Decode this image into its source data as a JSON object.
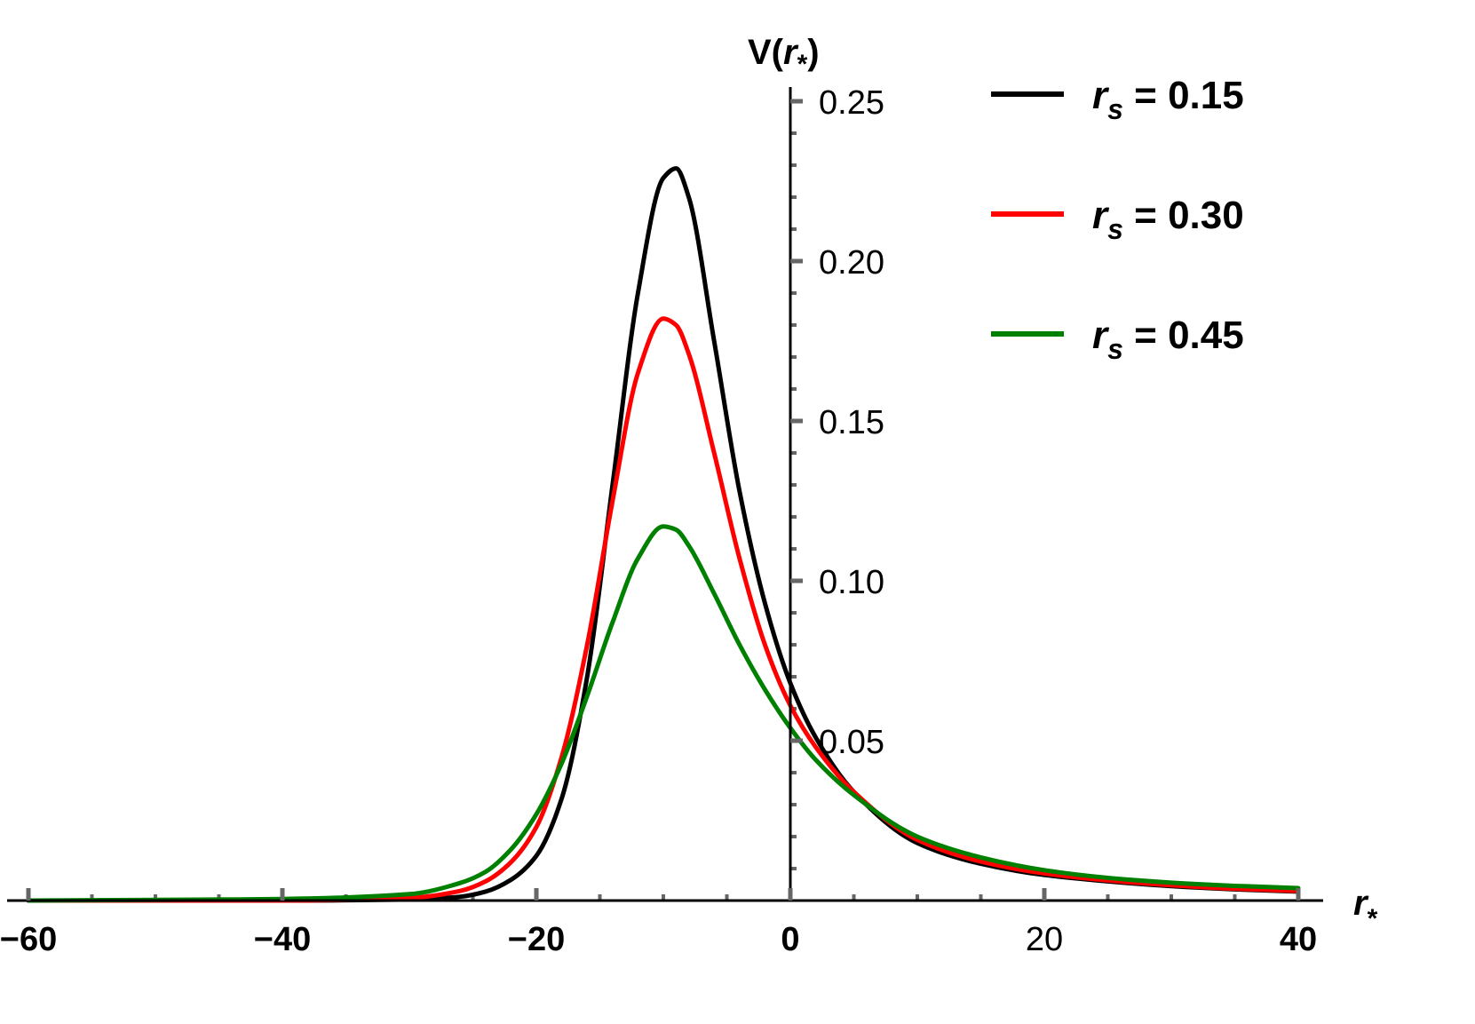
{
  "chart_data": {
    "type": "line",
    "xlabel": {
      "base": "r",
      "sub": "*"
    },
    "ylabel": {
      "prefix": "V(",
      "base": "r",
      "sub": "*",
      "suffix": ")"
    },
    "xlim": [
      -60,
      40
    ],
    "ylim": [
      0,
      0.26
    ],
    "x_ticks": [
      {
        "value": -60,
        "label": "−60",
        "bold": true
      },
      {
        "value": -40,
        "label": "−40",
        "bold": true
      },
      {
        "value": -20,
        "label": "−20",
        "bold": true
      },
      {
        "value": 0,
        "label": "0",
        "bold": true
      },
      {
        "value": 20,
        "label": "20",
        "bold": false
      },
      {
        "value": 40,
        "label": "40",
        "bold": true
      }
    ],
    "y_ticks": [
      {
        "value": 0.05,
        "label": "0.05"
      },
      {
        "value": 0.1,
        "label": "0.10"
      },
      {
        "value": 0.15,
        "label": "0.15"
      },
      {
        "value": 0.2,
        "label": "0.20"
      },
      {
        "value": 0.25,
        "label": "0.25"
      }
    ],
    "grid": false,
    "legend_position": "top-right",
    "series": [
      {
        "name": "r_s = 0.15",
        "legend": {
          "base": "r",
          "sub": "s",
          "value": " = 0.15"
        },
        "color": "#000000",
        "x": [
          -60,
          -40,
          -30,
          -26,
          -24,
          -22,
          -20,
          -18,
          -16,
          -14,
          -12,
          -10,
          -9,
          -8,
          -6,
          -4,
          -2,
          0,
          2,
          5,
          10,
          15,
          20,
          25,
          30,
          35,
          40
        ],
        "y": [
          0,
          0,
          0.0003,
          0.0012,
          0.0028,
          0.0065,
          0.014,
          0.032,
          0.07,
          0.13,
          0.19,
          0.226,
          0.229,
          0.22,
          0.175,
          0.128,
          0.093,
          0.068,
          0.051,
          0.034,
          0.018,
          0.0115,
          0.008,
          0.006,
          0.0045,
          0.0035,
          0.0028
        ]
      },
      {
        "name": "r_s = 0.30",
        "legend": {
          "base": "r",
          "sub": "s",
          "value": " = 0.30"
        },
        "color": "#ff0000",
        "x": [
          -60,
          -40,
          -30,
          -26,
          -24,
          -22,
          -20,
          -18,
          -16,
          -14,
          -12,
          -10,
          -9,
          -8,
          -6,
          -4,
          -2,
          0,
          2,
          5,
          10,
          15,
          20,
          25,
          30,
          35,
          40
        ],
        "y": [
          0,
          0,
          0.0008,
          0.003,
          0.006,
          0.012,
          0.023,
          0.045,
          0.08,
          0.125,
          0.165,
          0.182,
          0.18,
          0.171,
          0.14,
          0.107,
          0.08,
          0.061,
          0.048,
          0.034,
          0.019,
          0.0122,
          0.0085,
          0.0063,
          0.0048,
          0.0037,
          0.003
        ]
      },
      {
        "name": "r_s = 0.45",
        "legend": {
          "base": "r",
          "sub": "s",
          "value": " = 0.45"
        },
        "color": "#008000",
        "x": [
          -60,
          -40,
          -30,
          -26,
          -24,
          -22,
          -20,
          -18,
          -16,
          -14,
          -12,
          -10,
          -9,
          -8,
          -6,
          -4,
          -2,
          0,
          2,
          5,
          10,
          15,
          20,
          25,
          30,
          35,
          40
        ],
        "y": [
          0,
          0.0005,
          0.002,
          0.0055,
          0.009,
          0.016,
          0.027,
          0.043,
          0.064,
          0.087,
          0.107,
          0.117,
          0.116,
          0.111,
          0.096,
          0.08,
          0.066,
          0.054,
          0.044,
          0.033,
          0.02,
          0.0135,
          0.0095,
          0.0071,
          0.0056,
          0.0046,
          0.0039
        ]
      }
    ]
  }
}
